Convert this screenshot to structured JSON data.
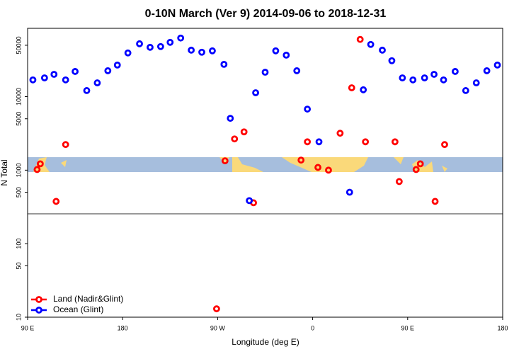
{
  "chart_data": {
    "type": "scatter",
    "title": "0-10N March (Ver 9)   2014-09-06 to 2018-12-31",
    "xlabel": "Longitude (deg E)",
    "ylabel": "N Total",
    "xlim": [
      90,
      540
    ],
    "xticks": [
      {
        "value": 90,
        "label": "90 E"
      },
      180,
      {
        "value": 270,
        "label": "90 W"
      },
      {
        "value": 360,
        "label": "0"
      },
      {
        "value": 450,
        "label": "90 E"
      },
      {
        "value": 540,
        "label": "180"
      }
    ],
    "ylim": [
      10,
      85000
    ],
    "log_y": true,
    "yticks": [
      10,
      50,
      100,
      500,
      1000,
      5000,
      10000,
      50000
    ],
    "legend": "bottom-left",
    "series": [
      {
        "name": "Land (Nadir&Glint)",
        "color": "#ff0000",
        "x": [
          99,
          102,
          117,
          126,
          269,
          277,
          286,
          295,
          304,
          349,
          355,
          365,
          375,
          386,
          397,
          405,
          410,
          438,
          442,
          458,
          462,
          476,
          485
        ],
        "values": [
          1020,
          1220,
          376,
          2230,
          13,
          1340,
          2660,
          3320,
          360,
          1370,
          2430,
          1090,
          1000,
          3180,
          13200,
          60000,
          2430,
          2430,
          700,
          1020,
          1220,
          376,
          2230
        ]
      },
      {
        "name": "Ocean (Glint)",
        "color": "#0000ff",
        "x": [
          95,
          106,
          115,
          126,
          135,
          146,
          156,
          166,
          175,
          185,
          196,
          206,
          216,
          225,
          235,
          245,
          255,
          265,
          276,
          282,
          300,
          306,
          315,
          325,
          335,
          345,
          355,
          366,
          395,
          408,
          415,
          426,
          435,
          445,
          455,
          466,
          475,
          484,
          495,
          505,
          515,
          525,
          535
        ],
        "values": [
          16900,
          18000,
          20100,
          16900,
          22000,
          12100,
          15400,
          22500,
          26900,
          39300,
          52400,
          46900,
          48000,
          54800,
          62700,
          42900,
          40200,
          42000,
          27500,
          5070,
          385,
          11300,
          21500,
          42000,
          36700,
          22500,
          6770,
          2430,
          501,
          12400,
          51300,
          42900,
          30800,
          18000,
          16900,
          18000,
          20100,
          16900,
          22000,
          12100,
          15400,
          22500,
          26900
        ]
      }
    ]
  }
}
